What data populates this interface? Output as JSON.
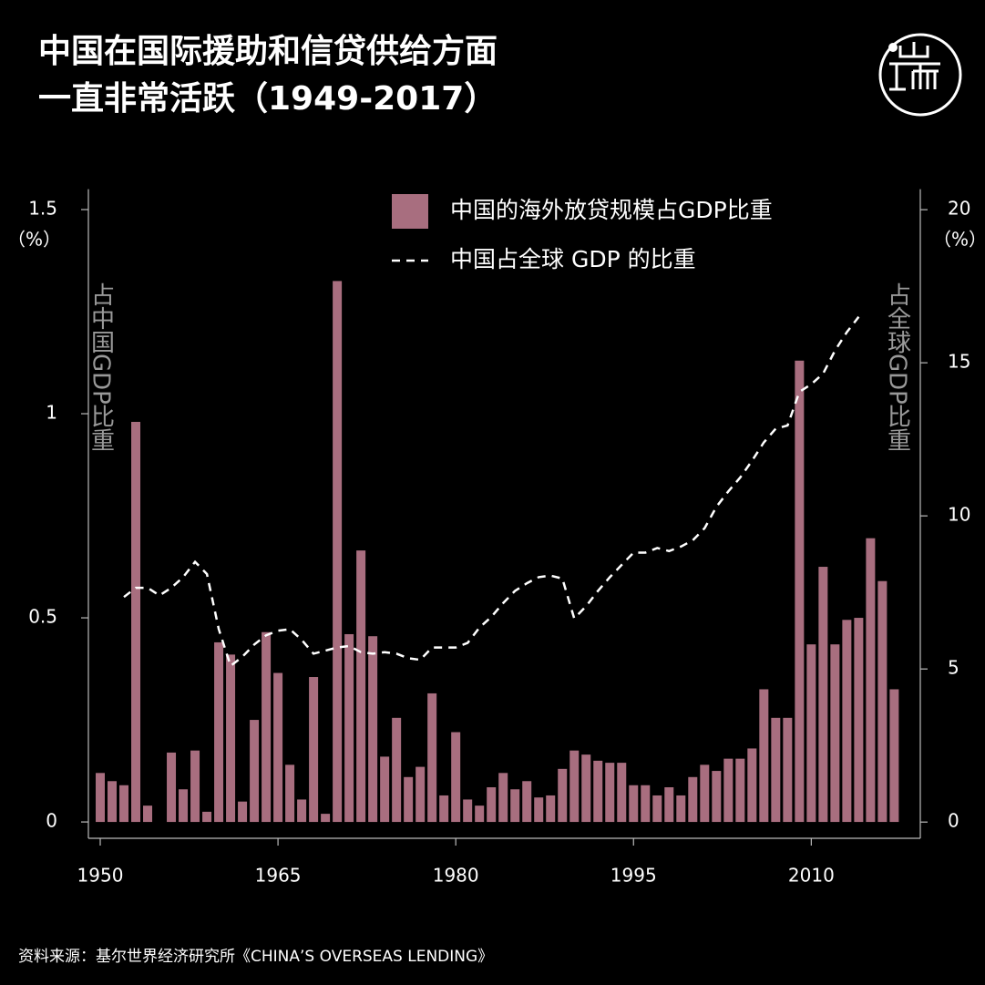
{
  "chart_data": {
    "type": "bar_line",
    "title": [
      "中国在国际援助和信贷供给方面",
      "一直非常活跃（1949-2017）"
    ],
    "y_label": "占中国GDP比重",
    "y2_label": "占全球GDP比重",
    "y_unit": "（%）",
    "y2_unit": "（%）",
    "source": "资料来源：基尔世界经济研究所《CHINA’S OVERSEAS LENDING》",
    "x": [
      1950,
      1951,
      1952,
      1953,
      1954,
      1955,
      1956,
      1957,
      1958,
      1959,
      1960,
      1961,
      1962,
      1963,
      1964,
      1965,
      1966,
      1967,
      1968,
      1969,
      1970,
      1971,
      1972,
      1973,
      1974,
      1975,
      1976,
      1977,
      1978,
      1979,
      1980,
      1981,
      1982,
      1983,
      1984,
      1985,
      1986,
      1987,
      1988,
      1989,
      1990,
      1991,
      1992,
      1993,
      1994,
      1995,
      1996,
      1997,
      1998,
      1999,
      2000,
      2001,
      2002,
      2003,
      2004,
      2005,
      2006,
      2007,
      2008,
      2009,
      2010,
      2011,
      2012,
      2013,
      2014,
      2015,
      2016,
      2017
    ],
    "series": [
      {
        "name": "中国的海外放贷规模占GDP比重",
        "kind": "bar",
        "color": "#a86e7f",
        "values": [
          0.12,
          0.1,
          0.09,
          0.98,
          0.04,
          0,
          0.17,
          0.08,
          0.175,
          0.025,
          0.44,
          0.41,
          0.05,
          0.25,
          0.465,
          0.365,
          0.14,
          0.055,
          0.355,
          0.02,
          1.325,
          0.46,
          0.665,
          0.455,
          0.16,
          0.255,
          0.11,
          0.135,
          0.315,
          0.065,
          0.22,
          0.055,
          0.04,
          0.085,
          0.12,
          0.08,
          0.1,
          0.06,
          0.065,
          0.13,
          0.175,
          0.165,
          0.15,
          0.145,
          0.145,
          0.09,
          0.09,
          0.065,
          0.085,
          0.065,
          0.11,
          0.14,
          0.125,
          0.155,
          0.155,
          0.18,
          0.325,
          0.255,
          0.255,
          1.13,
          0.435,
          0.625,
          0.435,
          0.495,
          0.5,
          0.695,
          0.59,
          0.325
        ]
      },
      {
        "name": "中国占全球 GDP 的比重",
        "kind": "line",
        "axis": "y2",
        "color": "#ffffff",
        "values": [
          null,
          null,
          7.35,
          7.65,
          7.65,
          7.4,
          7.65,
          8.0,
          8.5,
          8.1,
          6.3,
          5.1,
          5.4,
          5.8,
          6.1,
          6.25,
          6.3,
          5.95,
          5.5,
          5.6,
          5.7,
          5.75,
          5.55,
          5.5,
          5.55,
          5.5,
          5.35,
          5.3,
          5.7,
          5.7,
          5.7,
          5.85,
          6.35,
          6.7,
          7.15,
          7.55,
          7.8,
          8.0,
          8.05,
          7.95,
          6.65,
          7.05,
          7.55,
          8.0,
          8.4,
          8.8,
          8.8,
          8.95,
          8.85,
          9.0,
          9.2,
          9.6,
          10.3,
          10.8,
          11.25,
          11.8,
          12.4,
          12.85,
          12.95,
          14.05,
          14.3,
          14.65,
          15.4,
          16.0,
          16.5,
          null,
          null,
          null
        ]
      }
    ],
    "xlim": [
      1949,
      2019.2
    ],
    "xticks": [
      1950,
      1965,
      1980,
      1995,
      2010
    ],
    "ylim": [
      -0.04,
      1.55
    ],
    "yticks": [
      0,
      0.5,
      1,
      1.5
    ],
    "y2lim": [
      -0.53,
      20.67
    ],
    "y2ticks": [
      0,
      5,
      10,
      15,
      20
    ],
    "legend": "top"
  }
}
